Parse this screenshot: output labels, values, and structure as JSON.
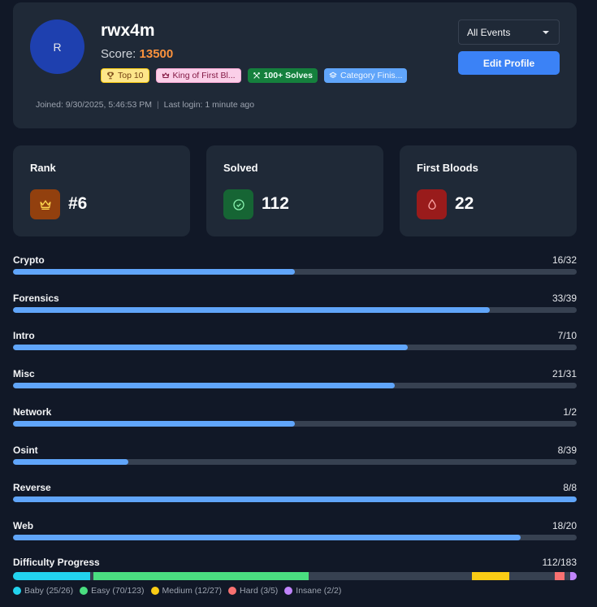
{
  "profile": {
    "avatar_initial": "R",
    "username": "rwx4m",
    "score_label": "Score:",
    "score_value": "13500",
    "badges": [
      {
        "label": "Top 10",
        "icon": "trophy-icon"
      },
      {
        "label": "King of First Bl...",
        "icon": "crown-icon"
      },
      {
        "label": "100+ Solves",
        "icon": "swords-icon"
      },
      {
        "label": "Category Finis...",
        "icon": "layers-icon"
      }
    ],
    "joined": "Joined: 9/30/2025, 5:46:53 PM",
    "separator": "|",
    "last_login": "Last login: 1 minute ago"
  },
  "controls": {
    "event_select_value": "All Events",
    "edit_profile_label": "Edit Profile"
  },
  "stats": [
    {
      "title": "Rank",
      "value": "#6",
      "icon": "crown-icon",
      "icon_bg": "#92400e",
      "icon_color": "#fcd34d"
    },
    {
      "title": "Solved",
      "value": "112",
      "icon": "check-circle-icon",
      "icon_bg": "#166534",
      "icon_color": "#86efac"
    },
    {
      "title": "First Bloods",
      "value": "22",
      "icon": "droplet-icon",
      "icon_bg": "#991b1b",
      "icon_color": "#fca5a5"
    }
  ],
  "categories": [
    {
      "name": "Crypto",
      "solved": 16,
      "total": 32,
      "count": "16/32"
    },
    {
      "name": "Forensics",
      "solved": 33,
      "total": 39,
      "count": "33/39"
    },
    {
      "name": "Intro",
      "solved": 7,
      "total": 10,
      "count": "7/10"
    },
    {
      "name": "Misc",
      "solved": 21,
      "total": 31,
      "count": "21/31"
    },
    {
      "name": "Network",
      "solved": 1,
      "total": 2,
      "count": "1/2"
    },
    {
      "name": "Osint",
      "solved": 8,
      "total": 39,
      "count": "8/39"
    },
    {
      "name": "Reverse",
      "solved": 8,
      "total": 8,
      "count": "8/8"
    },
    {
      "name": "Web",
      "solved": 18,
      "total": 20,
      "count": "18/20"
    }
  ],
  "difficulty": {
    "title": "Difficulty Progress",
    "count": "112/183",
    "total": 183,
    "levels": [
      {
        "name": "Baby",
        "solved": 25,
        "total": 26,
        "label": "Baby (25/26)",
        "color": "#22d3ee"
      },
      {
        "name": "Easy",
        "solved": 70,
        "total": 123,
        "label": "Easy (70/123)",
        "color": "#4ade80"
      },
      {
        "name": "Medium",
        "solved": 12,
        "total": 27,
        "label": "Medium (12/27)",
        "color": "#facc15"
      },
      {
        "name": "Hard",
        "solved": 3,
        "total": 5,
        "label": "Hard (3/5)",
        "color": "#f87171"
      },
      {
        "name": "Insane",
        "solved": 2,
        "total": 2,
        "label": "Insane (2/2)",
        "color": "#c084fc"
      }
    ]
  },
  "colors": {
    "page_bg": "#111827",
    "card_bg": "#1f2937",
    "accent": "#3b82f6",
    "progress_fill": "#60a5fa",
    "progress_track": "#374151",
    "score": "#fb923c"
  }
}
